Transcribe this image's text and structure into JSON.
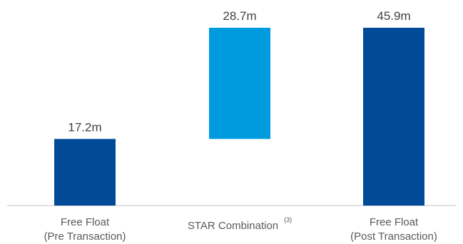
{
  "chart_data": {
    "type": "bar",
    "subtype": "waterfall",
    "categories": [
      {
        "line1": "Free Float",
        "line2": "(Pre Transaction)",
        "footnote": ""
      },
      {
        "line1": "STAR Combination",
        "line2": "",
        "footnote": "(3)"
      },
      {
        "line1": "Free Float",
        "line2": "(Post Transaction)",
        "footnote": ""
      }
    ],
    "bars": [
      {
        "start": 0,
        "end": 17.2,
        "label": "17.2m",
        "color": "#004a98",
        "kind": "total"
      },
      {
        "start": 17.2,
        "end": 45.9,
        "label": "28.7m",
        "color": "#009ade",
        "kind": "increase"
      },
      {
        "start": 0,
        "end": 45.9,
        "label": "45.9m",
        "color": "#004a98",
        "kind": "total"
      }
    ],
    "values": [
      17.2,
      28.7,
      45.9
    ],
    "unit": "m",
    "title": "",
    "xlabel": "",
    "ylabel": "",
    "ylim": [
      0,
      45.9
    ],
    "grid": false,
    "axis_color": "#d9d9d9",
    "label_color": "#595959",
    "value_label_color": "#404040"
  }
}
